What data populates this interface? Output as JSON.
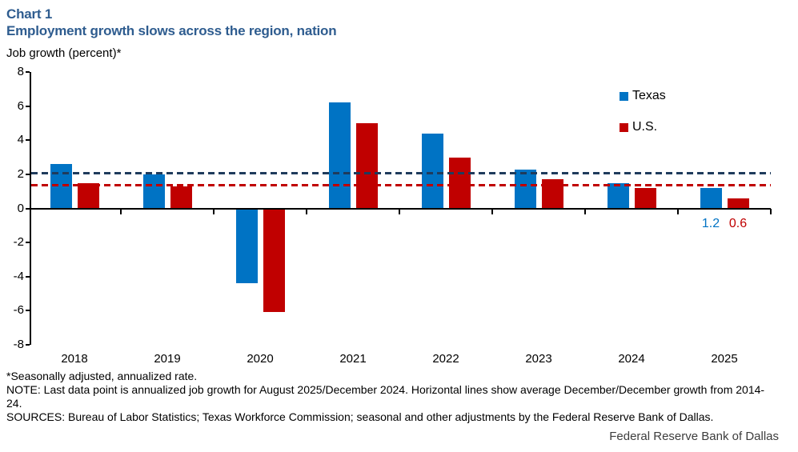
{
  "header": {
    "chart_label": "Chart 1",
    "title": "Employment growth slows across the region, nation"
  },
  "colors": {
    "title": "#2E5C8F",
    "texas": "#0073C4",
    "us": "#C00000",
    "texas_avg_line": "#1F3B5C",
    "us_avg_line": "#C00000",
    "axis": "#000000"
  },
  "chart_data": {
    "type": "bar",
    "title": "Employment growth slows across the region, nation",
    "ylabel": "Job growth (percent)*",
    "xlabel": "",
    "categories": [
      "2018",
      "2019",
      "2020",
      "2021",
      "2022",
      "2023",
      "2024",
      "2025"
    ],
    "series": [
      {
        "name": "Texas",
        "color": "#0073C4",
        "values": [
          2.6,
          2.0,
          -4.4,
          6.2,
          4.4,
          2.3,
          1.5,
          1.2
        ]
      },
      {
        "name": "U.S.",
        "color": "#C00000",
        "values": [
          1.5,
          1.3,
          -6.1,
          5.0,
          3.0,
          1.7,
          1.2,
          0.6
        ]
      }
    ],
    "ylim": [
      -8,
      8
    ],
    "yticks": [
      8,
      6,
      4,
      2,
      0,
      -2,
      -4,
      -6,
      -8
    ],
    "grid": false,
    "legend_position": "top-right",
    "reference_lines": [
      {
        "name": "texas-average-2014-24",
        "value": 2.05,
        "color": "#1F3B5C",
        "style": "dashed"
      },
      {
        "name": "us-average-2014-24",
        "value": 1.35,
        "color": "#C00000",
        "style": "dashed"
      }
    ],
    "last_point_labels": [
      {
        "series": "Texas",
        "text": "1.2",
        "color": "#0073C4"
      },
      {
        "series": "U.S.",
        "text": "0.6",
        "color": "#C00000"
      }
    ]
  },
  "footnotes": {
    "asterisk": "*Seasonally adjusted, annualized rate.",
    "note": "NOTE: Last data point is annualized job growth for August 2025/December 2024. Horizontal lines show average December/December growth from 2014-24.",
    "sources": "SOURCES: Bureau of Labor Statistics; Texas Workforce Commission; seasonal and other adjustments by the Federal Reserve Bank of Dallas."
  },
  "footer": {
    "org": "Federal Reserve Bank of Dallas"
  }
}
